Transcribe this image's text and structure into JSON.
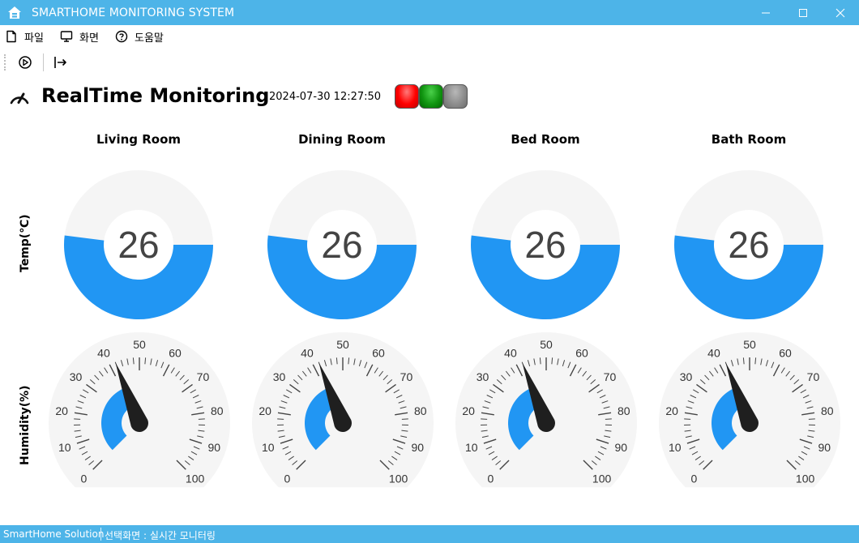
{
  "window": {
    "title": "SMARTHOME MONITORING SYSTEM",
    "icon": "home-icon"
  },
  "menu": [
    {
      "label": "파일",
      "icon": "file-icon"
    },
    {
      "label": "화면",
      "icon": "monitor-icon"
    },
    {
      "label": "도움말",
      "icon": "help-circle-icon"
    }
  ],
  "toolbar": [
    {
      "icon": "play-circle-icon"
    },
    {
      "icon": "exit-icon"
    }
  ],
  "header": {
    "title": "RealTime Monitoring",
    "datetime": "2024-07-30 12:27:50",
    "status_lights": [
      {
        "state": "red",
        "color": "#ff0000"
      },
      {
        "state": "green",
        "color": "#119611"
      },
      {
        "state": "gray",
        "color": "#8a8a8a"
      }
    ]
  },
  "row_labels": {
    "temp": "Temp(℃)",
    "humidity": "Humidity(%)"
  },
  "rooms": [
    {
      "name": "Living Room",
      "temp": 26,
      "humidity": 42
    },
    {
      "name": "Dining Room",
      "temp": 26,
      "humidity": 42
    },
    {
      "name": "Bed Room",
      "temp": 26,
      "humidity": 42
    },
    {
      "name": "Bath Room",
      "temp": 26,
      "humidity": 42
    }
  ],
  "temp_scale": {
    "min": 0,
    "max": 50
  },
  "humidity_scale": {
    "min": 0,
    "max": 100,
    "labels": [
      "0",
      "10",
      "20",
      "30",
      "40",
      "50",
      "60",
      "70",
      "80",
      "90",
      "100"
    ]
  },
  "colors": {
    "accent": "#4db4e8",
    "fill": "#2196f3",
    "track": "#f5f5f5",
    "needle": "#1f1f1f"
  },
  "statusbar": {
    "left": "SmartHome Solution",
    "right": "선택화면 : 실시간 모니터링"
  }
}
